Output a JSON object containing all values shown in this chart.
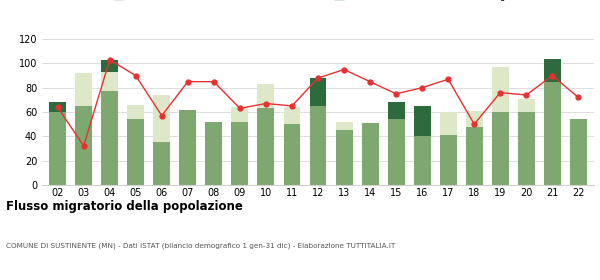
{
  "years": [
    "02",
    "03",
    "04",
    "05",
    "06",
    "07",
    "08",
    "09",
    "10",
    "11",
    "12",
    "13",
    "14",
    "15",
    "16",
    "17",
    "18",
    "19",
    "20",
    "21",
    "22"
  ],
  "iscritti_altri_comuni": [
    60,
    65,
    77,
    54,
    35,
    62,
    52,
    52,
    63,
    50,
    65,
    45,
    51,
    54,
    40,
    41,
    48,
    60,
    60,
    85,
    54
  ],
  "iscritti_estero": [
    0,
    27,
    16,
    12,
    39,
    0,
    0,
    12,
    20,
    14,
    0,
    7,
    0,
    0,
    0,
    19,
    13,
    37,
    11,
    0,
    0
  ],
  "iscritti_altri": [
    8,
    0,
    10,
    0,
    0,
    0,
    0,
    0,
    0,
    0,
    23,
    0,
    0,
    14,
    25,
    0,
    0,
    0,
    0,
    19,
    0
  ],
  "cancellati": [
    64,
    32,
    103,
    90,
    57,
    85,
    85,
    63,
    67,
    65,
    88,
    95,
    85,
    75,
    80,
    87,
    50,
    76,
    74,
    90,
    72
  ],
  "color_altri_comuni": "#7fa870",
  "color_estero": "#dde8c8",
  "color_altri": "#2d6b3c",
  "color_cancellati": "#e83030",
  "title": "Flusso migratorio della popolazione",
  "subtitle": "COMUNE DI SUSTINENTE (MN) - Dati ISTAT (bilancio demografico 1 gen-31 dic) - Elaborazione TUTTITALIA.IT",
  "ylim": [
    0,
    120
  ],
  "yticks": [
    0,
    20,
    40,
    60,
    80,
    100,
    120
  ],
  "background_color": "#ffffff",
  "grid_color": "#d0d0d0"
}
